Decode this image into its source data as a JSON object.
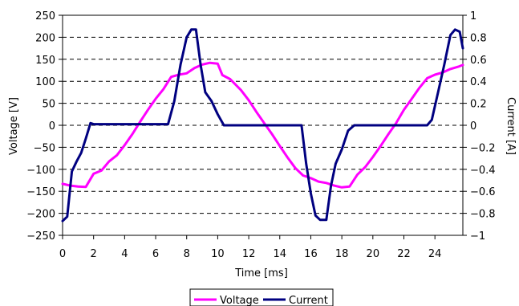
{
  "chart_data": {
    "type": "line",
    "xlabel": "Time [ms]",
    "ylabel_left": "Voltage [V]",
    "ylabel_right": "Current [A]",
    "xlim": [
      0,
      25.8
    ],
    "ylim_left": [
      -250,
      250
    ],
    "ylim_right": [
      -1,
      1
    ],
    "x_ticks": [
      "0",
      "2",
      "4",
      "6",
      "8",
      "10",
      "12",
      "14",
      "16",
      "18",
      "20",
      "22",
      "24"
    ],
    "y_left_ticks": [
      "250",
      "200",
      "150",
      "100",
      "50",
      "0",
      "−50",
      "−100",
      "−150",
      "−200",
      "−250"
    ],
    "y_right_ticks": [
      "1",
      "0.8",
      "0.6",
      "0.4",
      "0.2",
      "0",
      "−0.2",
      "−0.4",
      "−0.6",
      "−0.8",
      "−1"
    ],
    "grid": "horizontal dashed",
    "legend_position": "bottom-center",
    "series": [
      {
        "name": "Voltage",
        "axis": "left",
        "color": "#FF00FF",
        "x": [
          0,
          0.5,
          1.0,
          1.5,
          2.0,
          2.5,
          3.0,
          3.5,
          4.0,
          4.5,
          5.0,
          5.5,
          6.0,
          6.5,
          7.0,
          7.5,
          8.0,
          8.5,
          9.0,
          9.5,
          10.0,
          10.3,
          10.8,
          11.5,
          12.0,
          12.5,
          13.0,
          13.5,
          14.0,
          14.5,
          15.0,
          15.5,
          16.0,
          16.5,
          17.0,
          17.5,
          18.0,
          18.5,
          19.0,
          19.5,
          20.0,
          20.5,
          21.0,
          21.5,
          22.0,
          22.5,
          23.0,
          23.5,
          24.0,
          24.5,
          25.0,
          25.5,
          25.8
        ],
        "values": [
          -133,
          -137,
          -139,
          -140,
          -110,
          -103,
          -82,
          -68,
          -45,
          -20,
          8,
          35,
          60,
          82,
          110,
          115,
          118,
          130,
          138,
          142,
          140,
          114,
          105,
          80,
          57,
          30,
          5,
          -20,
          -47,
          -73,
          -97,
          -114,
          -120,
          -128,
          -131,
          -137,
          -141,
          -139,
          -112,
          -95,
          -72,
          -47,
          -20,
          5,
          35,
          60,
          85,
          107,
          115,
          120,
          128,
          133,
          137
        ]
      },
      {
        "name": "Current",
        "axis": "right",
        "color": "#000080",
        "x": [
          0,
          0.3,
          0.6,
          0.9,
          1.2,
          1.5,
          1.8,
          2.0,
          2.5,
          3.0,
          4.0,
          5.0,
          6.0,
          6.8,
          7.2,
          7.6,
          8.0,
          8.3,
          8.6,
          8.9,
          9.2,
          9.6,
          10.0,
          10.4,
          10.8,
          11.5,
          12.5,
          13.5,
          14.5,
          15.4,
          15.7,
          16.0,
          16.3,
          16.6,
          17.0,
          17.3,
          17.6,
          18.0,
          18.4,
          18.8,
          19.0,
          19.5,
          20.5,
          21.5,
          22.5,
          23.5,
          23.8,
          24.2,
          24.6,
          25.0,
          25.3,
          25.6,
          25.8
        ],
        "values": [
          -0.87,
          -0.83,
          -0.42,
          -0.33,
          -0.25,
          -0.12,
          0.02,
          0.01,
          0.01,
          0.01,
          0.01,
          0.01,
          0.01,
          0.01,
          0.22,
          0.55,
          0.8,
          0.87,
          0.87,
          0.55,
          0.3,
          0.22,
          0.1,
          0.0,
          0.0,
          0.0,
          0.0,
          0.0,
          0.0,
          0.0,
          -0.35,
          -0.62,
          -0.82,
          -0.86,
          -0.86,
          -0.55,
          -0.35,
          -0.22,
          -0.05,
          0.0,
          0.0,
          0.0,
          0.0,
          0.0,
          0.0,
          0.0,
          0.05,
          0.3,
          0.55,
          0.82,
          0.87,
          0.85,
          0.7
        ]
      }
    ]
  }
}
